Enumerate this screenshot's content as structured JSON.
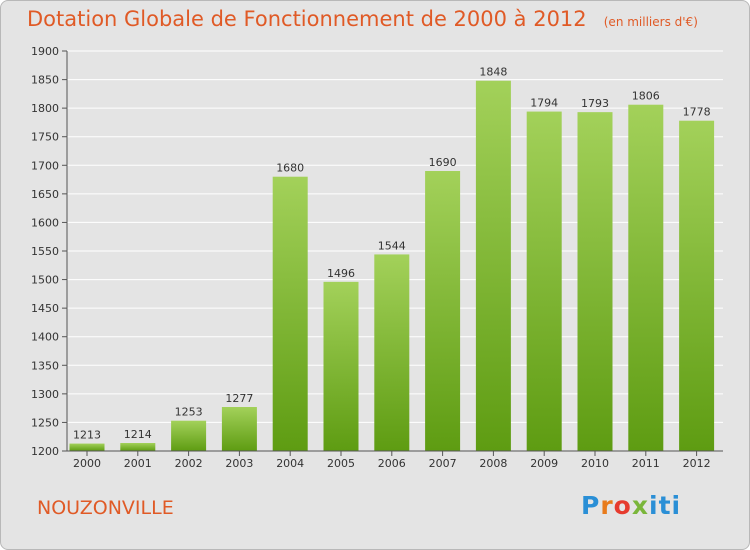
{
  "title": "Dotation Globale de Fonctionnement de 2000 à 2012",
  "unit": "(en milliers d'€)",
  "place": "NOUZONVILLE",
  "logo_text": "Proxiti",
  "colors": {
    "bar_light": "#a3d15a",
    "bar_dark": "#5e9c12",
    "title": "#e05a26",
    "grid": "#ffffff",
    "background": "#e4e4e4"
  },
  "chart_data": {
    "type": "bar",
    "categories": [
      "2000",
      "2001",
      "2002",
      "2003",
      "2004",
      "2005",
      "2006",
      "2007",
      "2008",
      "2009",
      "2010",
      "2011",
      "2012"
    ],
    "values": [
      1213,
      1214,
      1253,
      1277,
      1680,
      1496,
      1544,
      1690,
      1848,
      1794,
      1793,
      1806,
      1778
    ],
    "ylim": [
      1200,
      1900
    ],
    "yticks": [
      1200,
      1250,
      1300,
      1350,
      1400,
      1450,
      1500,
      1550,
      1600,
      1650,
      1700,
      1750,
      1800,
      1850,
      1900
    ],
    "grid": true,
    "xlabel": "",
    "ylabel": ""
  }
}
